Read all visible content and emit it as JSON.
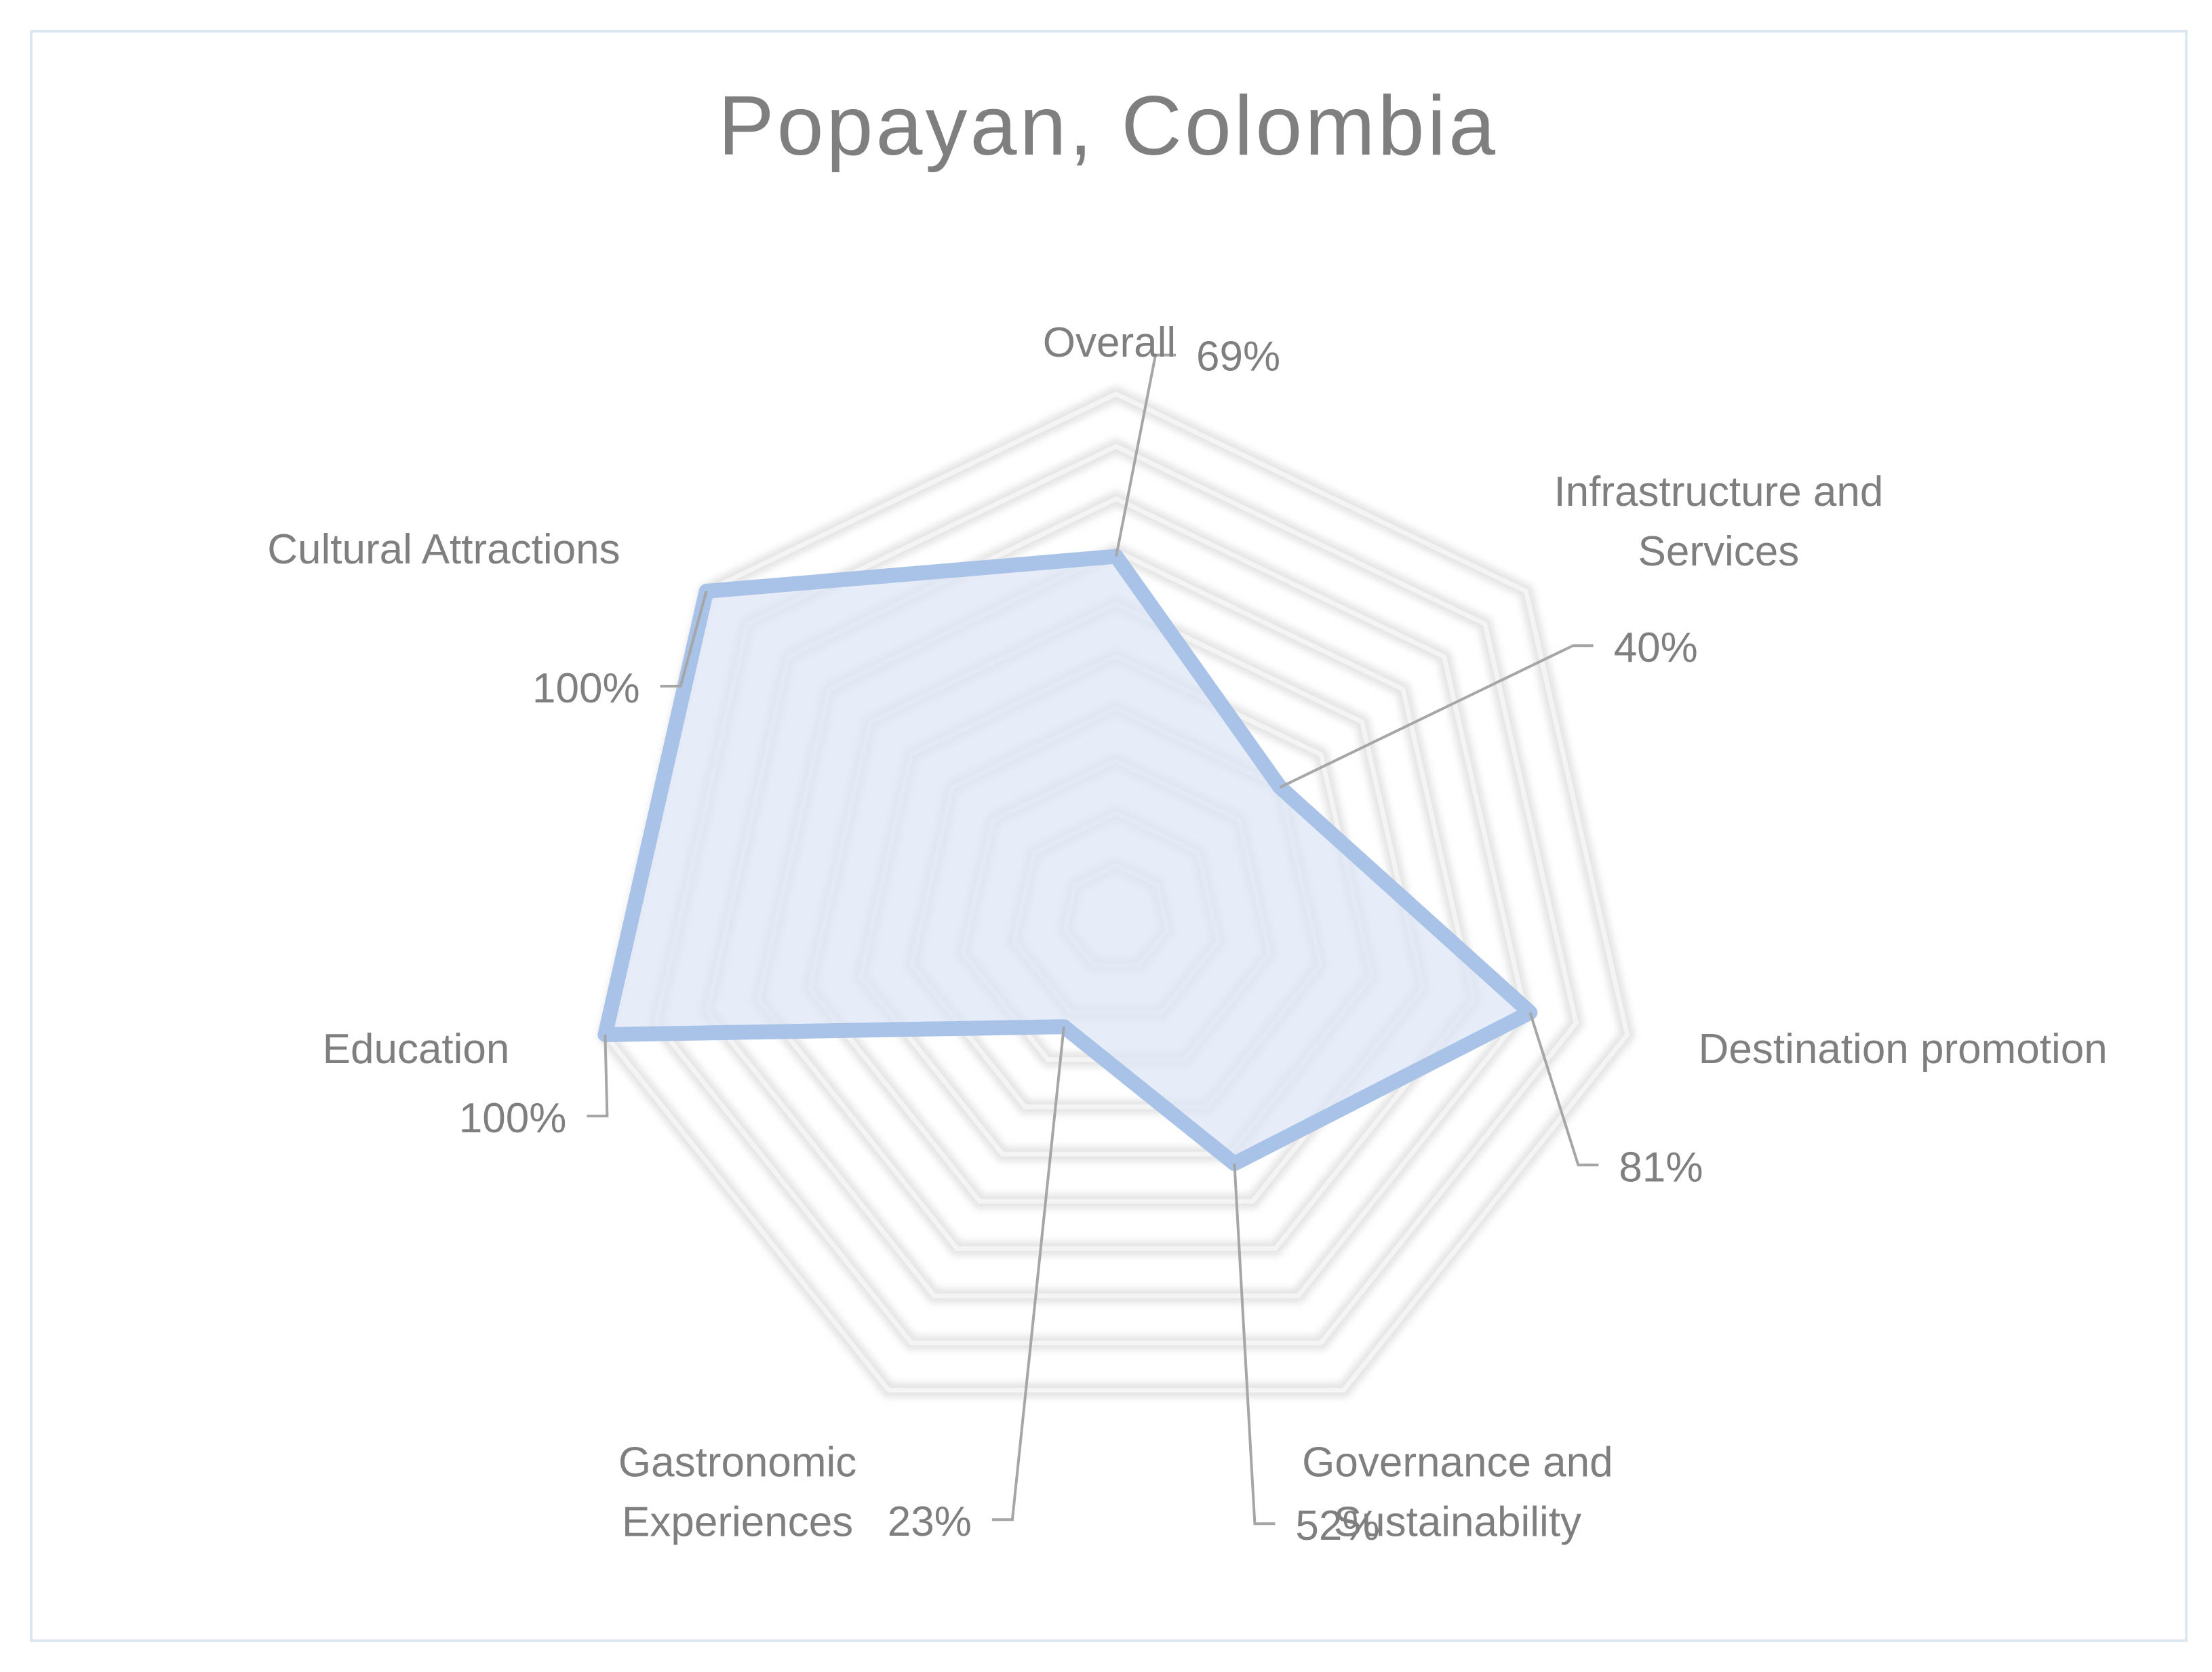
{
  "chart_data": {
    "type": "radar",
    "title": "Popayan, Colombia",
    "categories": [
      "Overall",
      "Infrastructure and Services",
      "Destination promotion",
      "Governance and Sustainability",
      "Gastronomic Experiences",
      "Education",
      "Cultural Attractions"
    ],
    "category_lines": [
      [
        "Overall"
      ],
      [
        "Infrastructure and",
        "Services"
      ],
      [
        "Destination promotion"
      ],
      [
        "Governance and",
        "Sustainability"
      ],
      [
        "Gastronomic",
        "Experiences"
      ],
      [
        "Education"
      ],
      [
        "Cultural Attractions"
      ]
    ],
    "values": [
      69,
      40,
      81,
      52,
      23,
      100,
      100
    ],
    "value_labels": [
      "69%",
      "40%",
      "81%",
      "52%",
      "23%",
      "100%",
      "100%"
    ],
    "rlim": [
      0,
      100
    ],
    "gridline_count": 10,
    "legend": "none",
    "series_color": "#a9c3e8",
    "series_fill": "#dde6f5",
    "grid_color": "#d9d9d9",
    "label_color": "#7f7f7f"
  }
}
